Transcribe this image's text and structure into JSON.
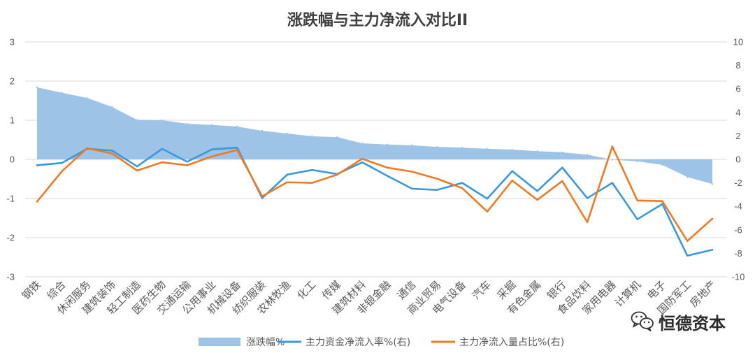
{
  "chart_data": {
    "type": "line",
    "title": "涨跌幅与主力净流入对比II",
    "categories": [
      "钢铁",
      "综合",
      "休闲服务",
      "建筑装饰",
      "轻工制造",
      "医药生物",
      "交通运输",
      "公用事业",
      "机械设备",
      "纺织服装",
      "农林牧渔",
      "化工",
      "传媒",
      "建筑材料",
      "非银金融",
      "通信",
      "商业贸易",
      "电气设备",
      "汽车",
      "采掘",
      "有色金属",
      "银行",
      "食品饮料",
      "家用电器",
      "计算机",
      "电子",
      "国防军工",
      "房地产"
    ],
    "y_left": {
      "min": -3,
      "max": 3,
      "ticks": [
        3,
        2,
        1,
        0,
        -1,
        -2,
        -3
      ]
    },
    "y_right": {
      "min": -10,
      "max": 10,
      "ticks": [
        10,
        8,
        6,
        4,
        2,
        0,
        -2,
        -4,
        -6,
        -8,
        -10
      ]
    },
    "series": [
      {
        "name": "涨跌幅%",
        "type": "area",
        "axis": "left",
        "color": "#9dc3e6",
        "values": [
          1.84,
          1.7,
          1.57,
          1.34,
          1.01,
          1.0,
          0.91,
          0.88,
          0.84,
          0.73,
          0.66,
          0.59,
          0.57,
          0.41,
          0.38,
          0.36,
          0.32,
          0.3,
          0.27,
          0.25,
          0.21,
          0.18,
          0.12,
          -0.01,
          -0.05,
          -0.14,
          -0.45,
          -0.63
        ]
      },
      {
        "name": "主力资金净流入率%(右)",
        "type": "line",
        "axis": "right",
        "color": "#3a98dc",
        "values": [
          -0.5,
          -0.3,
          0.9,
          0.75,
          -0.6,
          0.9,
          -0.2,
          0.85,
          1.0,
          -3.3,
          -1.3,
          -0.9,
          -1.25,
          -0.25,
          -1.4,
          -2.5,
          -2.6,
          -2.0,
          -3.35,
          -1.0,
          -2.7,
          -0.7,
          -3.3,
          -2.0,
          -5.1,
          -3.8,
          -8.2,
          -7.7
        ]
      },
      {
        "name": "主力净流入量占比%(右)",
        "type": "line",
        "axis": "right",
        "color": "#ee7b24",
        "values": [
          -3.6,
          -1.0,
          0.95,
          0.5,
          -0.95,
          -0.25,
          -0.5,
          0.25,
          0.8,
          -3.15,
          -1.95,
          -2.0,
          -1.3,
          0.05,
          -0.7,
          -1.05,
          -1.65,
          -2.45,
          -4.45,
          -1.8,
          -3.45,
          -1.85,
          -5.35,
          1.1,
          -3.5,
          -3.55,
          -6.95,
          -5.05
        ]
      }
    ],
    "grid": true,
    "legend_position": "bottom"
  },
  "watermark": {
    "text": "恒德资本",
    "icon": "wechat-icon"
  }
}
